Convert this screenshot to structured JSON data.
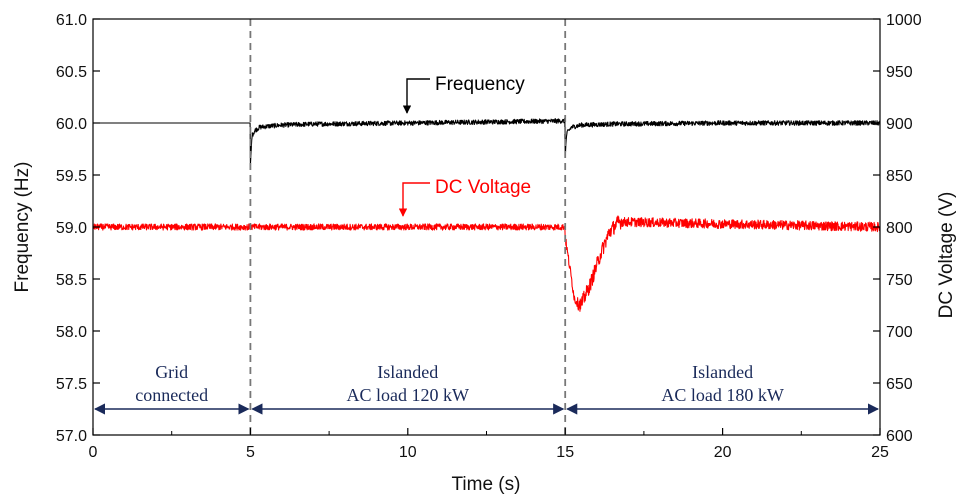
{
  "chart_data": {
    "type": "line",
    "xlabel": "Time (s)",
    "ylabel_left": "Frequency (Hz)",
    "ylabel_right": "DC Voltage (V)",
    "xlim": [
      0,
      25
    ],
    "ylim_left": [
      57.0,
      61.0
    ],
    "ylim_right": [
      600,
      1000
    ],
    "x_ticks": [
      "0",
      "5",
      "10",
      "15",
      "20",
      "25"
    ],
    "y_ticks_left": [
      "57.0",
      "57.5",
      "58.0",
      "58.5",
      "59.0",
      "59.5",
      "60.0",
      "60.5",
      "61.0"
    ],
    "y_ticks_right": [
      "600",
      "650",
      "700",
      "750",
      "800",
      "850",
      "900",
      "950",
      "1000"
    ],
    "event_lines_x": [
      5,
      15
    ],
    "series": [
      {
        "name": "Frequency",
        "axis": "left",
        "color": "#000000",
        "x": [
          0,
          4.99,
          5.0,
          5.05,
          5.15,
          5.3,
          5.6,
          6.0,
          7.0,
          10.0,
          14.99,
          15.0,
          15.05,
          15.2,
          15.5,
          16.5,
          20.0,
          25.0
        ],
        "y": [
          60.0,
          60.0,
          59.58,
          59.88,
          59.93,
          59.96,
          59.97,
          59.98,
          59.99,
          60.0,
          60.02,
          59.7,
          59.9,
          59.96,
          59.98,
          59.99,
          60.0,
          60.0
        ]
      },
      {
        "name": "DC Voltage",
        "axis": "right",
        "color": "#ff0000",
        "x": [
          0,
          5,
          10,
          14.99,
          15.0,
          15.15,
          15.3,
          15.5,
          15.8,
          16.1,
          16.4,
          16.7,
          20,
          25
        ],
        "y": [
          800,
          800,
          800,
          800,
          790,
          760,
          730,
          725,
          745,
          772,
          795,
          805,
          803,
          800
        ]
      }
    ],
    "annotations": [
      {
        "text": "Frequency",
        "color": "#000000"
      },
      {
        "text": "DC Voltage",
        "color": "#ff0000"
      }
    ],
    "phases": [
      {
        "line1": "Grid",
        "line2": "connected",
        "x_range": [
          0,
          5
        ]
      },
      {
        "line1": "Islanded",
        "line2": "AC load 120 kW",
        "x_range": [
          5,
          15
        ]
      },
      {
        "line1": "Islanded",
        "line2": "AC load 180 kW",
        "x_range": [
          15,
          25
        ]
      }
    ],
    "phase_arrow_y_left": 57.25,
    "grid": false
  }
}
